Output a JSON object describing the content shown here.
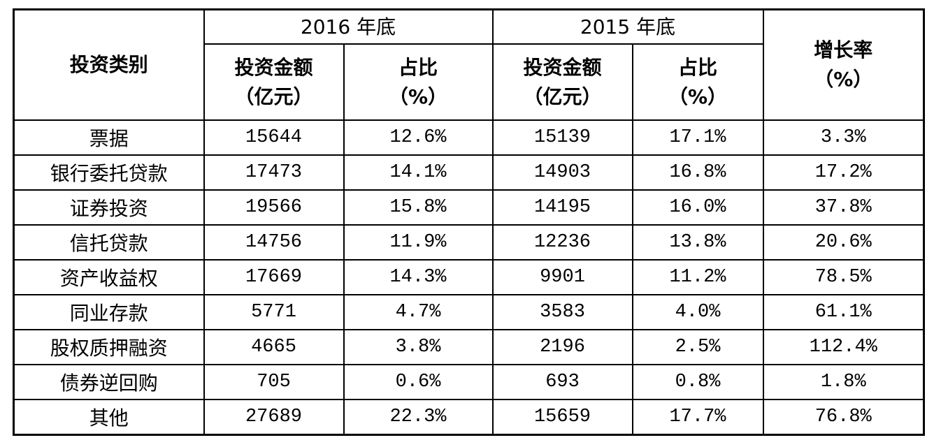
{
  "table": {
    "header": {
      "category": "投资类别",
      "groups": [
        {
          "label": "2016 年底",
          "columns": [
            [
              "投资金额",
              "（亿元）"
            ],
            [
              "占比",
              "（%）"
            ]
          ]
        },
        {
          "label": "2015 年底",
          "columns": [
            [
              "投资金额",
              "（亿元）"
            ],
            [
              "占比",
              "（%）"
            ]
          ]
        }
      ],
      "growth": [
        "增长率",
        "（%）"
      ]
    },
    "rows": [
      [
        "票据",
        "15644",
        "12.6%",
        "15139",
        "17.1%",
        "3.3%"
      ],
      [
        "银行委托贷款",
        "17473",
        "14.1%",
        "14903",
        "16.8%",
        "17.2%"
      ],
      [
        "证券投资",
        "19566",
        "15.8%",
        "14195",
        "16.0%",
        "37.8%"
      ],
      [
        "信托贷款",
        "14756",
        "11.9%",
        "12236",
        "13.8%",
        "20.6%"
      ],
      [
        "资产收益权",
        "17669",
        "14.3%",
        "9901",
        "11.2%",
        "78.5%"
      ],
      [
        "同业存款",
        "5771",
        "4.7%",
        "3583",
        "4.0%",
        "61.1%"
      ],
      [
        "股权质押融资",
        "4665",
        "3.8%",
        "2196",
        "2.5%",
        "112.4%"
      ],
      [
        "债券逆回购",
        "705",
        "0.6%",
        "693",
        "0.8%",
        "1.8%"
      ],
      [
        "其他",
        "27689",
        "22.3%",
        "15659",
        "17.7%",
        "76.8%"
      ]
    ]
  }
}
